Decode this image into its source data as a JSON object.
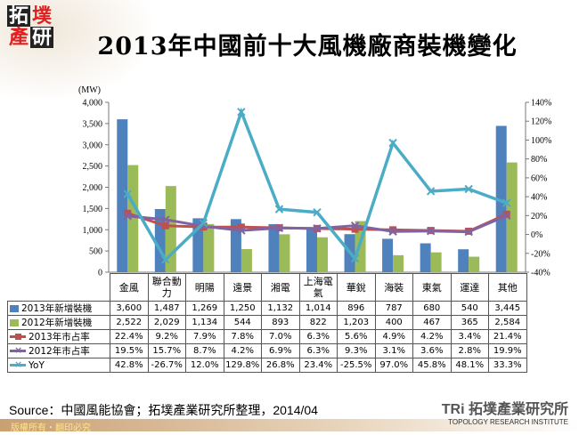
{
  "header": {
    "logo_text": "拓墣產研",
    "title": "2013年中國前十大風機廠商裝機變化"
  },
  "chart_data": {
    "type": "bar+line",
    "title": "2013年中國前十大風機廠商裝機變化",
    "ylabel": "(MW)",
    "ylim": [
      0,
      4000
    ],
    "y_ticks": [
      "0",
      "500",
      "1,000",
      "1,500",
      "2,000",
      "2,500",
      "3,000",
      "3,500",
      "4,000"
    ],
    "y2lim": [
      -40,
      140
    ],
    "y2_ticks": [
      "-40%",
      "-20%",
      "0%",
      "20%",
      "40%",
      "60%",
      "80%",
      "100%",
      "120%",
      "140%"
    ],
    "categories": [
      "金風",
      "聯合動力",
      "明陽",
      "遠景",
      "湘電",
      "上海電氣",
      "華銳",
      "海裝",
      "東氣",
      "運達",
      "其他"
    ],
    "series": [
      {
        "name": "2013年新增裝機",
        "kind": "bar",
        "axis": "left",
        "color": "#4F81BD",
        "values": [
          3600,
          1487,
          1269,
          1250,
          1132,
          1014,
          896,
          787,
          680,
          540,
          3445
        ],
        "labels": [
          "3,600",
          "1,487",
          "1,269",
          "1,250",
          "1,132",
          "1,014",
          "896",
          "787",
          "680",
          "540",
          "3,445"
        ]
      },
      {
        "name": "2012年新增裝機",
        "kind": "bar",
        "axis": "left",
        "color": "#9BBB59",
        "values": [
          2522,
          2029,
          1134,
          544,
          893,
          822,
          1203,
          400,
          467,
          365,
          2584
        ],
        "labels": [
          "2,522",
          "2,029",
          "1,134",
          "544",
          "893",
          "822",
          "1,203",
          "400",
          "467",
          "365",
          "2,584"
        ]
      },
      {
        "name": "2013年市占率",
        "kind": "line",
        "axis": "right",
        "color": "#C0504D",
        "marker": "square",
        "values": [
          22.4,
          9.2,
          7.9,
          7.8,
          7.0,
          6.3,
          5.6,
          4.9,
          4.2,
          3.4,
          21.4
        ],
        "labels": [
          "22.4%",
          "9.2%",
          "7.9%",
          "7.8%",
          "7.0%",
          "6.3%",
          "5.6%",
          "4.9%",
          "4.2%",
          "3.4%",
          "21.4%"
        ]
      },
      {
        "name": "2012年市占率",
        "kind": "line",
        "axis": "right",
        "color": "#8064A2",
        "marker": "x",
        "values": [
          19.5,
          15.7,
          8.7,
          4.2,
          6.9,
          6.3,
          9.3,
          3.1,
          3.6,
          2.8,
          19.9
        ],
        "labels": [
          "19.5%",
          "15.7%",
          "8.7%",
          "4.2%",
          "6.9%",
          "6.3%",
          "9.3%",
          "3.1%",
          "3.6%",
          "2.8%",
          "19.9%"
        ]
      },
      {
        "name": "YoY",
        "kind": "line",
        "axis": "right",
        "color": "#4BACC6",
        "marker": "x",
        "values": [
          42.8,
          -26.7,
          12.0,
          129.8,
          26.8,
          23.4,
          -25.5,
          97.0,
          45.8,
          48.1,
          33.3
        ],
        "labels": [
          "42.8%",
          "-26.7%",
          "12.0%",
          "129.8%",
          "26.8%",
          "23.4%",
          "-25.5%",
          "97.0%",
          "45.8%",
          "48.1%",
          "33.3%"
        ]
      }
    ],
    "legend_placement": "data-table",
    "grid": false
  },
  "footer": {
    "source": "Source：中國風能協會；拓墣產業研究所整理，2014/04",
    "copyright": "版權所有‧翻印必究",
    "brand": "TRi 拓墣產業研究所",
    "brand_sub": "TOPOLOGY RESEARCH INSTITUTE"
  }
}
